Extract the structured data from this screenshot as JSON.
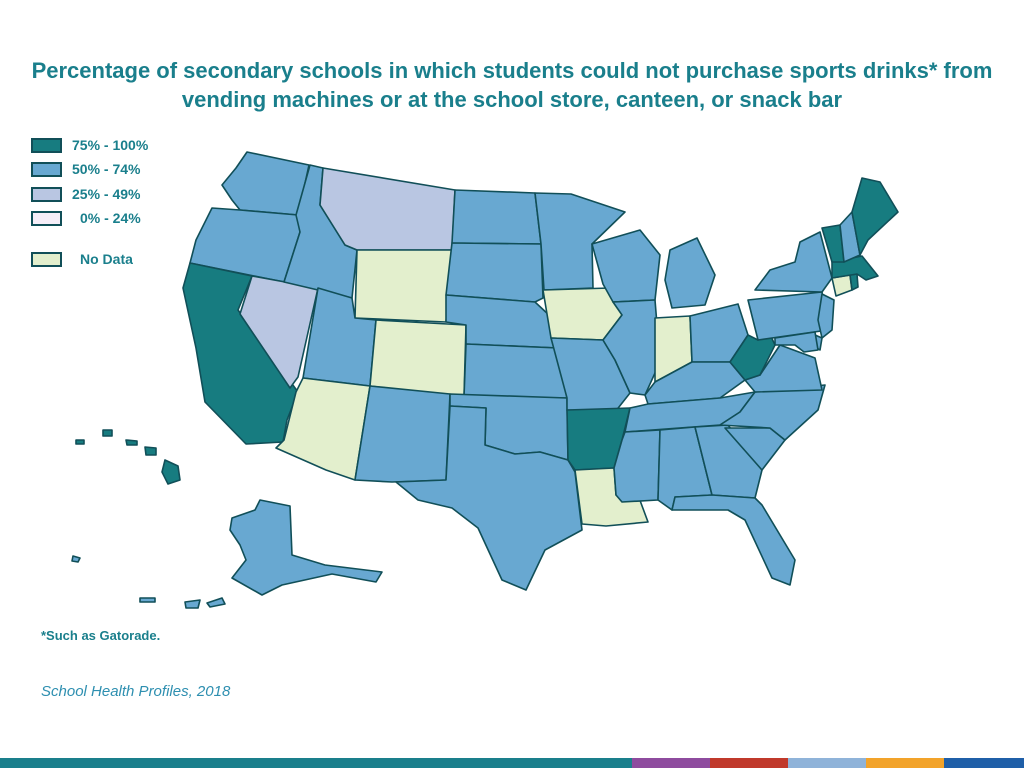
{
  "title": "Percentage of secondary schools in which students could not purchase sports drinks* from vending machines or at the school store, canteen, or snack bar",
  "legend": [
    {
      "label": "75% - 100%",
      "category": "c4"
    },
    {
      "label": "50% - 74%",
      "category": "c3"
    },
    {
      "label": "25% - 49%",
      "category": "c2"
    },
    {
      "label": "0% - 24%",
      "category": "c1"
    },
    {
      "label": "No Data",
      "category": "nd"
    }
  ],
  "colors": {
    "c4": "#177c80",
    "c3": "#68a8d1",
    "c2": "#b9c6e2",
    "c1": "#f6eef8",
    "nd": "#e3efcd",
    "border": "#114f58",
    "title": "#1a7f8c"
  },
  "states": {
    "WA": "c3",
    "OR": "c3",
    "CA": "c4",
    "NV": "c2",
    "ID": "c3",
    "MT": "c2",
    "WY": "nd",
    "UT": "c3",
    "AZ": "nd",
    "CO": "nd",
    "NM": "c3",
    "ND": "c3",
    "SD": "c3",
    "NE": "c3",
    "KS": "c3",
    "OK": "c3",
    "TX": "c3",
    "MN": "c3",
    "IA": "nd",
    "MO": "c3",
    "AR": "c4",
    "LA": "nd",
    "WI": "c3",
    "IL": "c3",
    "MI": "c3",
    "IN": "nd",
    "OH": "c3",
    "KY": "c3",
    "TN": "c3",
    "MS": "c3",
    "AL": "c3",
    "GA": "c3",
    "FL": "c3",
    "SC": "c3",
    "NC": "c3",
    "VA": "c3",
    "WV": "c4",
    "PA": "c3",
    "NY": "c3",
    "VT": "c4",
    "NH": "c3",
    "ME": "c4",
    "MA": "c4",
    "RI": "c4",
    "CT": "nd",
    "NJ": "c3",
    "DE": "c3",
    "MD": "c3",
    "AK": "c3",
    "HI": "c4"
  },
  "footnote": "*Such as Gatorade.",
  "source": "School Health Profiles, 2018",
  "footer_colors": [
    "#1a7f8c",
    "#8e4b9e",
    "#c0392b",
    "#8fb3d9",
    "#f2a32a",
    "#1f5fa8"
  ]
}
